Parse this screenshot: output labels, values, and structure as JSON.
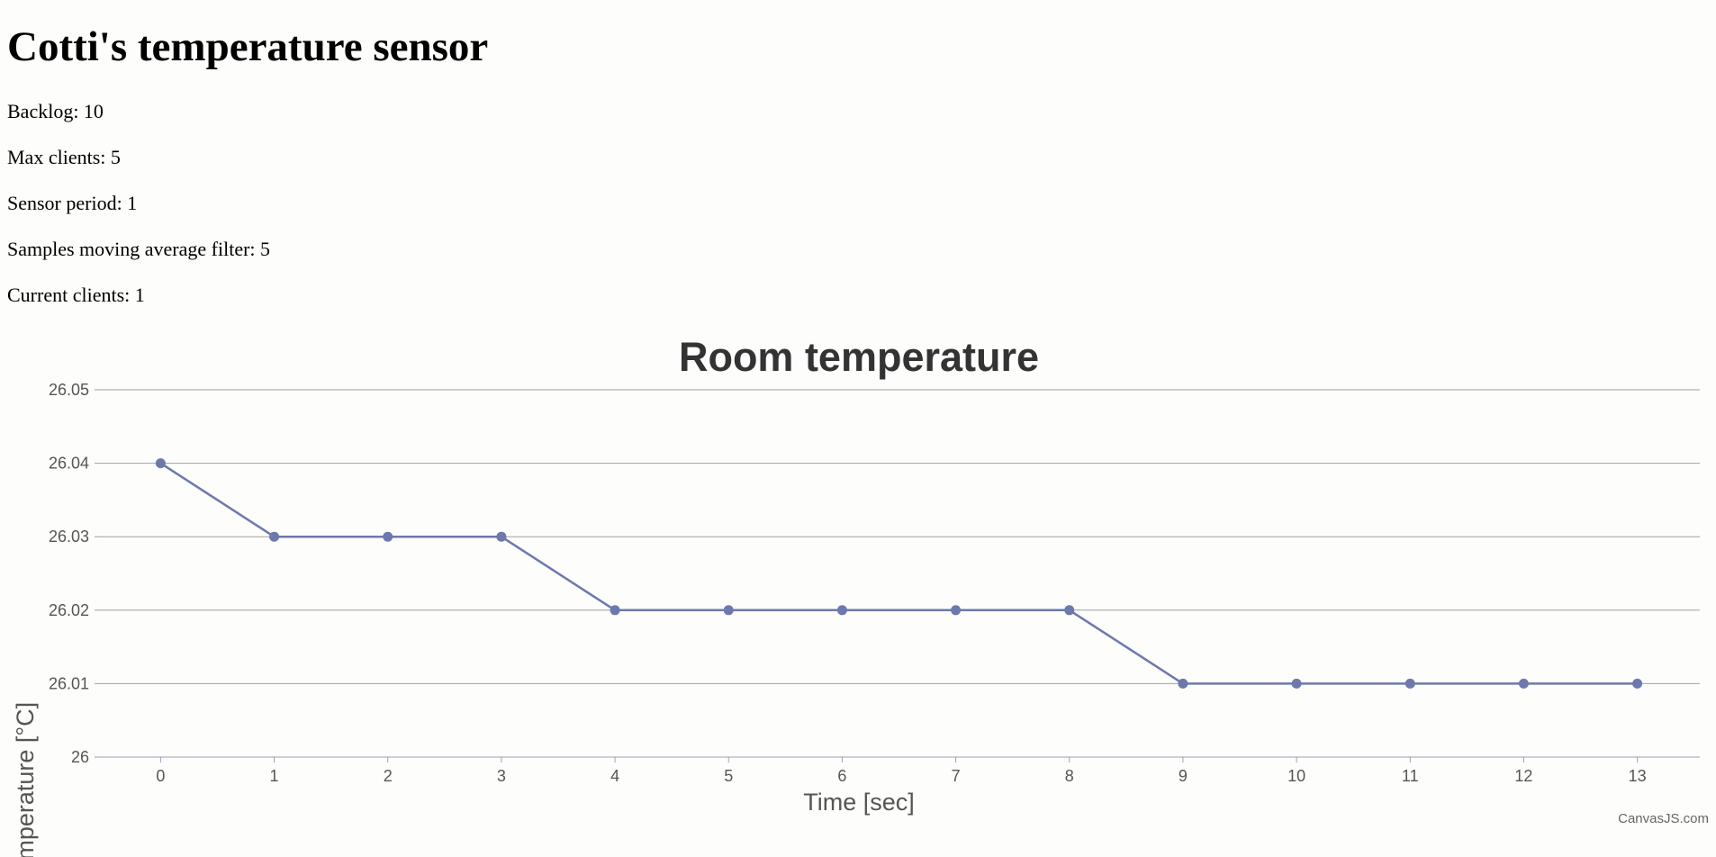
{
  "page": {
    "title": "Cotti's temperature sensor",
    "stats": {
      "backlog": "Backlog: 10",
      "max_clients": "Max clients: 5",
      "sensor_period": "Sensor period: 1",
      "samples_filter": "Samples moving average filter: 5",
      "current_clients": "Current clients: 1"
    }
  },
  "colors": {
    "series": "#6d78ad",
    "grid": "#a0a0a0",
    "axis_line": "#9aa0b8",
    "title": "#333333",
    "tick_text": "#555555"
  },
  "credit": "CanvasJS.com",
  "chart_data": {
    "type": "line",
    "title": "Room temperature",
    "xlabel": "Time [sec]",
    "ylabel": "Temperature [°C]",
    "x": [
      0,
      1,
      2,
      3,
      4,
      5,
      6,
      7,
      8,
      9,
      10,
      11,
      12,
      13
    ],
    "series": [
      {
        "values": [
          26.04,
          26.03,
          26.03,
          26.03,
          26.02,
          26.02,
          26.02,
          26.02,
          26.02,
          26.01,
          26.01,
          26.01,
          26.01,
          26.01
        ]
      }
    ],
    "xlim": [
      -0.55,
      13.55
    ],
    "ylim": [
      26,
      26.05
    ],
    "x_ticks": [
      "0",
      "1",
      "2",
      "3",
      "4",
      "5",
      "6",
      "7",
      "8",
      "9",
      "10",
      "11",
      "12",
      "13"
    ],
    "y_ticks": [
      "26",
      "26.01",
      "26.02",
      "26.03",
      "26.04",
      "26.05"
    ],
    "y_tick_values": [
      26,
      26.01,
      26.02,
      26.03,
      26.04,
      26.05
    ],
    "grid": true,
    "legend": "none"
  }
}
